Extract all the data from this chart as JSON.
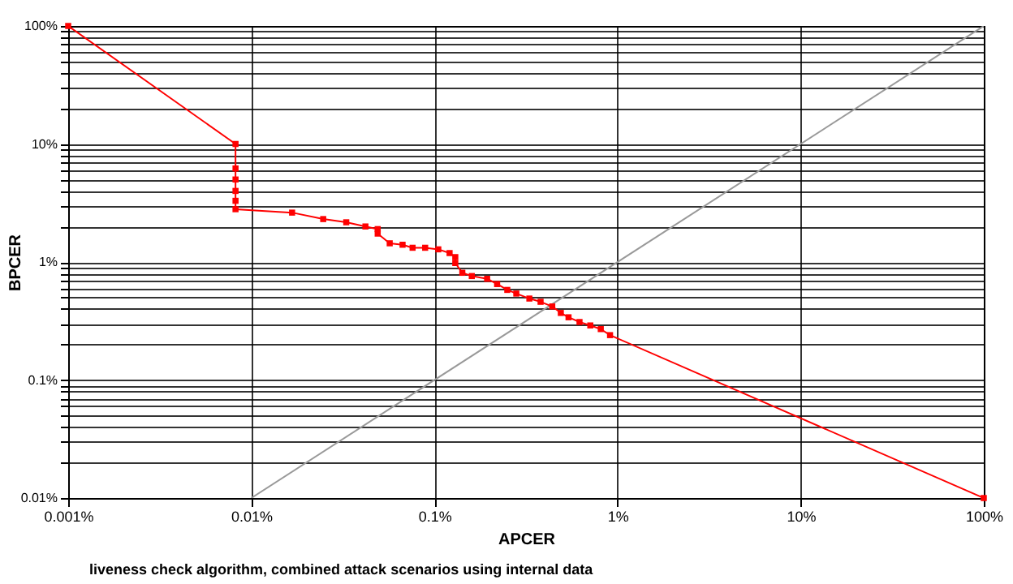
{
  "chart_data": {
    "type": "line",
    "xlabel": "APCER",
    "ylabel": "BPCER",
    "annotations": [
      "liveness check algorithm, combined attack scenarios using internal data"
    ],
    "log": "xy",
    "grid": true,
    "marker": "square",
    "line_style": "solid",
    "xlim": [
      0.001,
      100
    ],
    "ylim": [
      0.01,
      100
    ],
    "xticks": [
      {
        "value": 0.001,
        "label": "0.001%"
      },
      {
        "value": 0.01,
        "label": "0.01%"
      },
      {
        "value": 0.1,
        "label": "0.1%"
      },
      {
        "value": 1,
        "label": "1%"
      },
      {
        "value": 10,
        "label": "10%"
      },
      {
        "value": 100,
        "label": "100%"
      }
    ],
    "yticks": [
      {
        "value": 0.01,
        "label": "0.01%"
      },
      {
        "value": 0.02,
        "label": null
      },
      {
        "value": 0.03,
        "label": null
      },
      {
        "value": 0.04,
        "label": null
      },
      {
        "value": 0.05,
        "label": null
      },
      {
        "value": 0.06,
        "label": null
      },
      {
        "value": 0.07,
        "label": null
      },
      {
        "value": 0.08,
        "label": null
      },
      {
        "value": 0.09,
        "label": null
      },
      {
        "value": 0.1,
        "label": "0.1%"
      },
      {
        "value": 0.2,
        "label": null
      },
      {
        "value": 0.3,
        "label": null
      },
      {
        "value": 0.4,
        "label": null
      },
      {
        "value": 0.5,
        "label": null
      },
      {
        "value": 0.6,
        "label": null
      },
      {
        "value": 0.7,
        "label": null
      },
      {
        "value": 0.8,
        "label": null
      },
      {
        "value": 0.9,
        "label": null
      },
      {
        "value": 1,
        "label": "1%"
      },
      {
        "value": 2,
        "label": null
      },
      {
        "value": 3,
        "label": null
      },
      {
        "value": 4,
        "label": null
      },
      {
        "value": 5,
        "label": null
      },
      {
        "value": 6,
        "label": null
      },
      {
        "value": 7,
        "label": null
      },
      {
        "value": 8,
        "label": null
      },
      {
        "value": 9,
        "label": null
      },
      {
        "value": 10,
        "label": "10%"
      },
      {
        "value": 20,
        "label": null
      },
      {
        "value": 30,
        "label": null
      },
      {
        "value": 40,
        "label": null
      },
      {
        "value": 50,
        "label": null
      },
      {
        "value": 60,
        "label": null
      },
      {
        "value": 70,
        "label": null
      },
      {
        "value": 80,
        "label": null
      },
      {
        "value": 90,
        "label": null
      },
      {
        "value": 100,
        "label": "100%"
      }
    ],
    "series": [
      {
        "color": "#999999",
        "marker": "none",
        "x": [
          0.01,
          100
        ],
        "values": [
          0.01,
          100
        ]
      },
      {
        "color": "#ff0000",
        "x": [
          0.001,
          0.0082,
          0.0082,
          0.0082,
          0.0082,
          0.0082,
          0.0082,
          0.0167,
          0.0247,
          0.033,
          0.042,
          0.049,
          0.049,
          0.057,
          0.067,
          0.076,
          0.089,
          0.105,
          0.121,
          0.13,
          0.13,
          0.142,
          0.16,
          0.194,
          0.22,
          0.25,
          0.28,
          0.33,
          0.38,
          0.44,
          0.49,
          0.54,
          0.62,
          0.71,
          0.81,
          0.91,
          100
        ],
        "values": [
          100,
          10,
          6.2,
          5.0,
          4.0,
          3.3,
          2.8,
          2.62,
          2.31,
          2.17,
          2.0,
          1.9,
          1.74,
          1.44,
          1.4,
          1.32,
          1.32,
          1.28,
          1.19,
          1.1,
          0.98,
          0.81,
          0.76,
          0.72,
          0.65,
          0.58,
          0.54,
          0.49,
          0.46,
          0.42,
          0.37,
          0.34,
          0.31,
          0.29,
          0.27,
          0.24,
          0.01
        ]
      }
    ]
  }
}
